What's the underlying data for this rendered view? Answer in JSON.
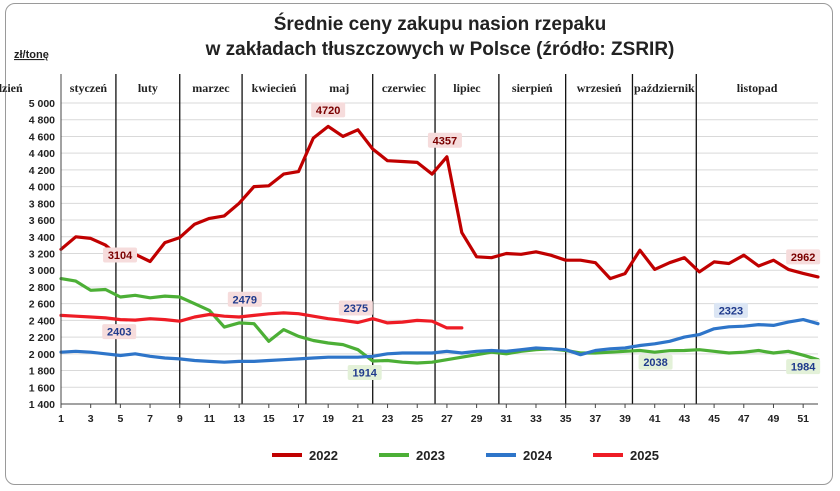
{
  "chart_data": {
    "type": "line",
    "title_line1": "Średnie ceny zakupu nasion rzepaku",
    "title_line2": "w zakładach tłuszczowych w Polsce  (źródło: ZSRIR)",
    "ylabel": "zł/tonę",
    "ylim": [
      1400,
      5000
    ],
    "yticks": [
      "1 400",
      "1 600",
      "1 800",
      "2 000",
      "2 200",
      "2 400",
      "2 600",
      "2 800",
      "3 000",
      "3 200",
      "3 400",
      "3 600",
      "3 800",
      "4 000",
      "4 200",
      "4 400",
      "4 600",
      "4 800",
      "5 000"
    ],
    "xlim": [
      1,
      52
    ],
    "xticks": [
      1,
      3,
      5,
      7,
      9,
      11,
      13,
      15,
      17,
      19,
      21,
      23,
      25,
      27,
      29,
      31,
      33,
      35,
      37,
      39,
      41,
      43,
      45,
      47,
      49,
      51
    ],
    "months": [
      "styczeń",
      "luty",
      "marzec",
      "kwiecień",
      "maj",
      "czerwiec",
      "lipiec",
      "sierpień",
      "wrzesień",
      "październik",
      "listopad",
      "grudzień"
    ],
    "month_boundaries": [
      4.7,
      9,
      13.2,
      17.5,
      22,
      26.2,
      30.5,
      35,
      39.5,
      43.8
    ],
    "colors": {
      "2022": "#c00000",
      "2023": "#4caf36",
      "2024": "#2e75c9",
      "2025": "#ee1c25"
    },
    "series": [
      {
        "name": "2022",
        "values": [
          3250,
          3400,
          3380,
          3300,
          3150,
          3190,
          3104,
          3330,
          3390,
          3550,
          3620,
          3650,
          3800,
          4000,
          4010,
          4150,
          4180,
          4580,
          4720,
          4600,
          4680,
          4450,
          4310,
          4300,
          4290,
          4150,
          4357,
          3450,
          3160,
          3150,
          3200,
          3190,
          3220,
          3180,
          3120,
          3120,
          3090,
          2900,
          2960,
          3240,
          3010,
          3090,
          3150,
          2980,
          3100,
          3080,
          3180,
          3050,
          3120,
          3010,
          2962,
          2920
        ]
      },
      {
        "name": "2023",
        "values": [
          2900,
          2870,
          2760,
          2770,
          2680,
          2700,
          2670,
          2690,
          2680,
          2600,
          2520,
          2320,
          2370,
          2360,
          2150,
          2290,
          2210,
          2160,
          2130,
          2110,
          2050,
          1914,
          1920,
          1900,
          1890,
          1900,
          1930,
          1960,
          1990,
          2020,
          2000,
          2030,
          2050,
          2060,
          2040,
          2010,
          2010,
          2020,
          2030,
          2040,
          2020,
          2038,
          2040,
          2050,
          2030,
          2010,
          2020,
          2040,
          2010,
          2030,
          1984,
          1930
        ]
      },
      {
        "name": "2024",
        "values": [
          2020,
          2030,
          2020,
          2000,
          1980,
          2000,
          1970,
          1950,
          1940,
          1920,
          1910,
          1900,
          1910,
          1910,
          1920,
          1930,
          1940,
          1950,
          1960,
          1960,
          1960,
          1970,
          2000,
          2010,
          2010,
          2010,
          2030,
          2010,
          2030,
          2040,
          2030,
          2050,
          2070,
          2060,
          2050,
          1990,
          2040,
          2060,
          2070,
          2100,
          2120,
          2150,
          2200,
          2230,
          2300,
          2323,
          2330,
          2350,
          2340,
          2380,
          2410,
          2360
        ]
      },
      {
        "name": "2025",
        "values": [
          2460,
          2450,
          2440,
          2430,
          2410,
          2403,
          2420,
          2410,
          2390,
          2440,
          2470,
          2450,
          2440,
          2460,
          2479,
          2490,
          2480,
          2450,
          2420,
          2400,
          2375,
          2420,
          2370,
          2380,
          2400,
          2390,
          2310,
          2310
        ]
      }
    ],
    "data_labels": [
      {
        "text": "4720",
        "series": "2022",
        "week": 19,
        "value": 4720
      },
      {
        "text": "4357",
        "series": "2022",
        "week": 27,
        "value": 4357
      },
      {
        "text": "3104",
        "series": "2022",
        "week": 7,
        "value": 3104
      },
      {
        "text": "2962",
        "series": "2022",
        "week": 51,
        "value": 2962
      },
      {
        "text": "2403",
        "series": "2025",
        "week": 6,
        "value": 2403
      },
      {
        "text": "2479",
        "series": "2025",
        "week": 15,
        "value": 2479
      },
      {
        "text": "2375",
        "series": "2025",
        "week": 21,
        "value": 2375
      },
      {
        "text": "2323",
        "series": "2024",
        "week": 46,
        "value": 2323
      },
      {
        "text": "1914",
        "series": "2023",
        "week": 22,
        "value": 1914
      },
      {
        "text": "2038",
        "series": "2023",
        "week": 42,
        "value": 2038
      },
      {
        "text": "1984",
        "series": "2023",
        "week": 51,
        "value": 1984
      }
    ],
    "grid": "horizontal",
    "legend": "bottom"
  }
}
